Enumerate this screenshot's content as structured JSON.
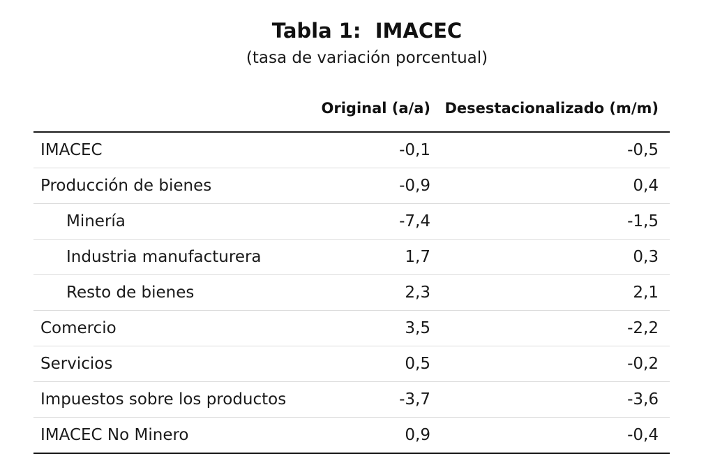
{
  "document": {
    "title": "Tabla 1:  IMACEC",
    "subtitle": "(tasa de variación porcentual)"
  },
  "table": {
    "headers": {
      "label": "",
      "original": "Original (a/a)",
      "desestacionalizado": "Desestacionalizado (m/m)"
    },
    "rows": [
      {
        "label": "IMACEC",
        "original": "-0,1",
        "desestacionalizado": "-0,5",
        "indent": false
      },
      {
        "label": "Producción de bienes",
        "original": "-0,9",
        "desestacionalizado": "0,4",
        "indent": false
      },
      {
        "label": "Minería",
        "original": "-7,4",
        "desestacionalizado": "-1,5",
        "indent": true
      },
      {
        "label": "Industria manufacturera",
        "original": "1,7",
        "desestacionalizado": "0,3",
        "indent": true
      },
      {
        "label": "Resto de bienes",
        "original": "2,3",
        "desestacionalizado": "2,1",
        "indent": true
      },
      {
        "label": "Comercio",
        "original": "3,5",
        "desestacionalizado": "-2,2",
        "indent": false
      },
      {
        "label": "Servicios",
        "original": "0,5",
        "desestacionalizado": "-0,2",
        "indent": false
      },
      {
        "label": "Impuestos sobre los productos",
        "original": "-3,7",
        "desestacionalizado": "-3,6",
        "indent": false
      },
      {
        "label": "IMACEC No Minero",
        "original": "0,9",
        "desestacionalizado": "-0,4",
        "indent": false
      }
    ]
  }
}
